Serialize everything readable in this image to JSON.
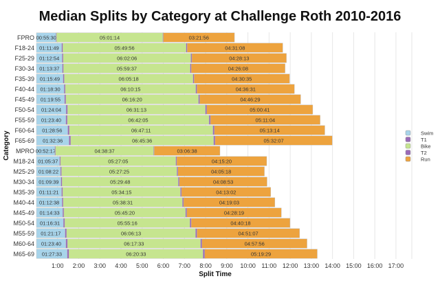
{
  "chart_data": {
    "type": "bar",
    "orientation": "horizontal",
    "stacked": true,
    "title": "Median Splits by Category at Challenge Roth 2010-2016",
    "xlabel": "Split Time",
    "ylabel": "Category",
    "xlim": [
      "0:00",
      "17:45"
    ],
    "xticks": [
      "1:00",
      "2:00",
      "3:00",
      "4:00",
      "5:00",
      "6:00",
      "7:00",
      "8:00",
      "9:00",
      "10:00",
      "11:00",
      "12:00",
      "13:00",
      "14:00",
      "15:00",
      "16:00",
      "17:00"
    ],
    "grid": "vertical",
    "legend_position": "right",
    "legend": [
      "Swim",
      "T1",
      "Bike",
      "T2",
      "Run"
    ],
    "colors": {
      "Swim": "#a8d4ea",
      "T1": "#9a6ab8",
      "Bike": "#c6e58f",
      "T2": "#9a6ab8",
      "Run": "#eda33e"
    },
    "categories": [
      "FPRO",
      "F18-24",
      "F25-29",
      "F30-34",
      "F35-39",
      "F40-44",
      "F45-49",
      "F50-54",
      "F55-59",
      "F60-64",
      "F65-69",
      "MPRO",
      "M18-24",
      "M25-29",
      "M30-34",
      "M35-39",
      "M40-44",
      "M45-49",
      "M50-54",
      "M55-59",
      "M60-64",
      "M65-69"
    ],
    "series": [
      {
        "name": "Swim",
        "values": [
          "00:55:30",
          "01:11:49",
          "01:12:54",
          "01:13:37",
          "01:15:49",
          "01:18:30",
          "01:19:55",
          "01:24:04",
          "01:23:40",
          "01:28:56",
          "01:32:36",
          "00:52:17",
          "01:05:37",
          "01:08:22",
          "01:09:39",
          "01:11:21",
          "01:12:38",
          "01:14:33",
          "01:16:31",
          "01:21:17",
          "01:23:40",
          "01:27:33"
        ]
      },
      {
        "name": "T1",
        "values": [
          "00:01:40",
          "00:03:00",
          "00:03:00",
          "00:03:00",
          "00:03:10",
          "00:03:20",
          "00:03:30",
          "00:04:00",
          "00:04:00",
          "00:04:30",
          "00:04:30",
          "00:01:40",
          "00:02:40",
          "00:02:50",
          "00:03:00",
          "00:03:00",
          "00:03:10",
          "00:03:20",
          "00:03:40",
          "00:04:00",
          "00:04:20",
          "00:04:40"
        ]
      },
      {
        "name": "Bike",
        "values": [
          "05:01:14",
          "05:49:56",
          "06:02:06",
          "05:59:37",
          "06:05:18",
          "06:10:15",
          "06:16:20",
          "06:31:13",
          "06:42:05",
          "06:47:11",
          "06:45:36",
          "04:38:37",
          "05:27:05",
          "05:27:25",
          "05:29:48",
          "05:34:15",
          "05:38:31",
          "05:45:20",
          "05:55:16",
          "06:06:13",
          "06:17:33",
          "06:20:33"
        ]
      },
      {
        "name": "T2",
        "values": [
          "00:01:30",
          "00:03:00",
          "00:03:00",
          "00:03:00",
          "00:03:10",
          "00:03:20",
          "00:03:30",
          "00:04:00",
          "00:04:00",
          "00:04:20",
          "00:04:20",
          "00:01:30",
          "00:02:40",
          "00:02:50",
          "00:03:00",
          "00:03:00",
          "00:03:10",
          "00:03:20",
          "00:03:40",
          "00:04:00",
          "00:04:10",
          "00:04:30"
        ]
      },
      {
        "name": "Run",
        "values": [
          "03:21:56",
          "04:31:08",
          "04:28:13",
          "04:26:08",
          "04:30:35",
          "04:36:31",
          "04:46:29",
          "05:00:41",
          "05:11:04",
          "05:13:14",
          "05:32:07",
          "03:06:38",
          "04:15:20",
          "04:05:18",
          "04:08:53",
          "04:13:02",
          "04:19:03",
          "04:28:19",
          "04:40:18",
          "04:51:07",
          "04:57:56",
          "05:19:29"
        ]
      }
    ],
    "labeled_series": [
      "Swim",
      "Bike",
      "Run"
    ]
  }
}
